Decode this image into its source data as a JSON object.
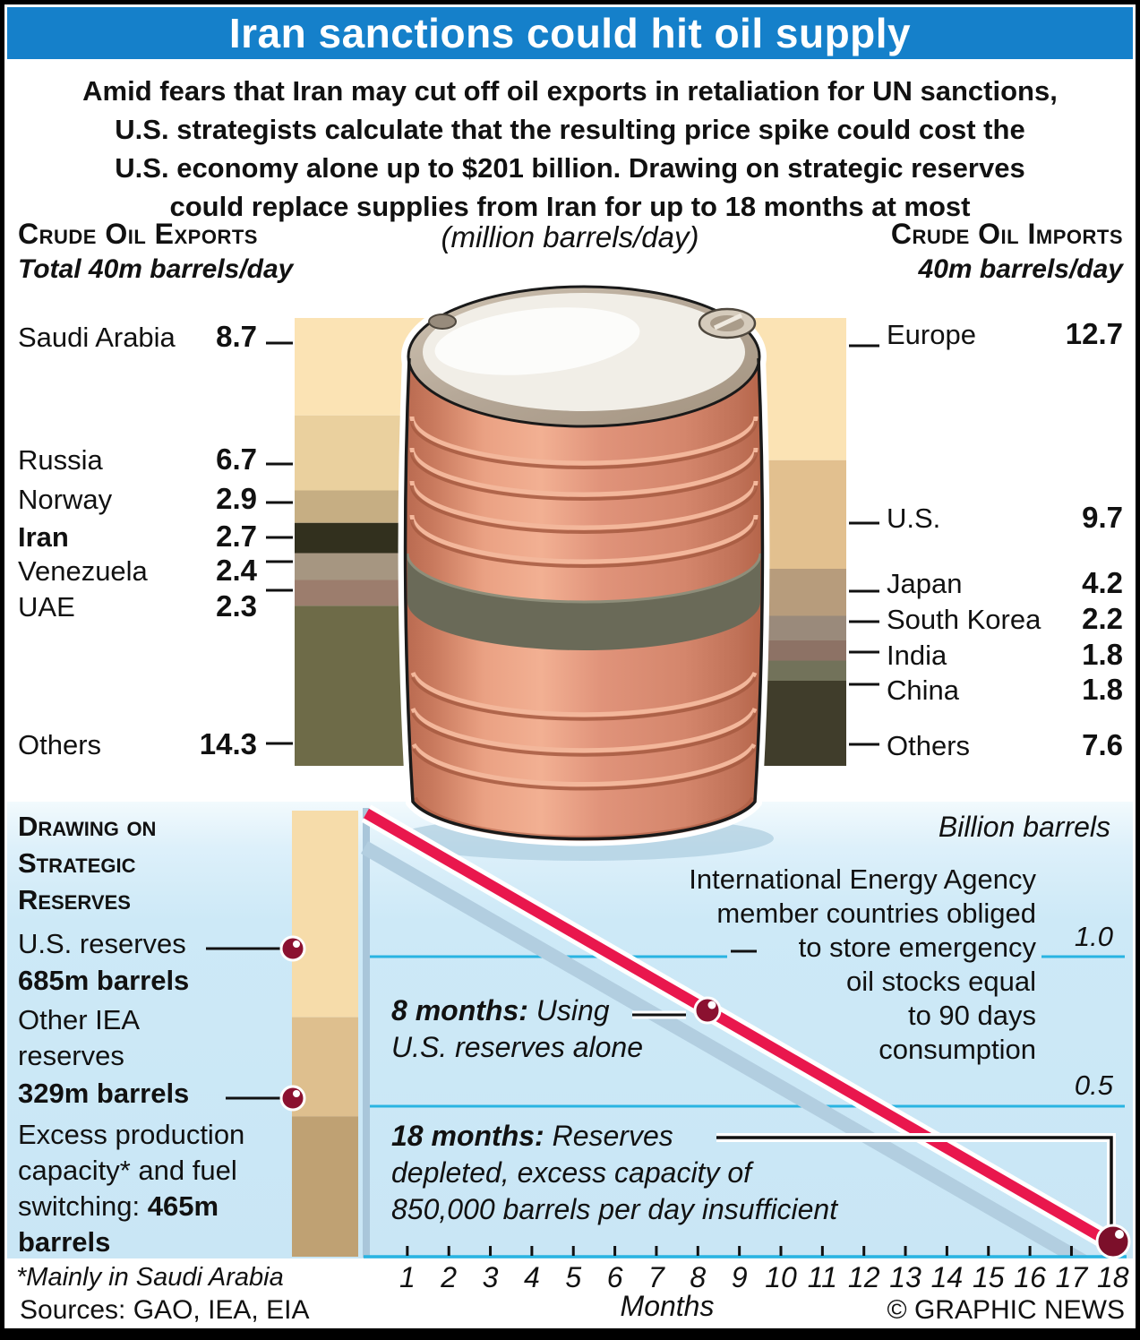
{
  "title": "Iran sanctions could hit oil supply",
  "intro_lines": [
    "Amid fears that Iran may cut off oil exports in retaliation for UN sanctions,",
    "U.S. strategists calculate that the resulting price spike could cost the",
    "U.S. economy alone up to $201 billion. Drawing on strategic reserves",
    "could replace supplies from Iran for up to 18 months at most"
  ],
  "unit_note": "(million barrels/day)",
  "exports": {
    "heading": "Crude Oil Exports",
    "subheading": "Total 40m barrels/day",
    "rows": [
      {
        "label": "Saudi Arabia",
        "value": "8.7"
      },
      {
        "label": "Russia",
        "value": "6.7"
      },
      {
        "label": "Norway",
        "value": "2.9"
      },
      {
        "label": "Iran",
        "value": "2.7",
        "bold": true
      },
      {
        "label": "Venezuela",
        "value": "2.4"
      },
      {
        "label": "UAE",
        "value": "2.3"
      },
      {
        "label": "Others",
        "value": "14.3"
      }
    ]
  },
  "imports": {
    "heading": "Crude Oil Imports",
    "subheading": "40m barrels/day",
    "rows": [
      {
        "label": "Europe",
        "value": "12.7"
      },
      {
        "label": "U.S.",
        "value": "9.7"
      },
      {
        "label": "Japan",
        "value": "4.2"
      },
      {
        "label": "South Korea",
        "value": "2.2"
      },
      {
        "label": "India",
        "value": "1.8"
      },
      {
        "label": "China",
        "value": "1.8"
      },
      {
        "label": "Others",
        "value": "7.6"
      }
    ]
  },
  "reserves": {
    "heading_lines": [
      "Drawing on",
      "Strategic",
      "Reserves"
    ],
    "text_lines": [
      [
        {
          "t": "U.S. reserves"
        }
      ],
      [
        {
          "t": "685m barrels",
          "s": "b"
        }
      ],
      [
        {
          "t": "Other IEA"
        }
      ],
      [
        {
          "t": "reserves"
        }
      ],
      [
        {
          "t": "329m barrels",
          "s": "b"
        }
      ],
      [
        {
          "t": "Excess production"
        }
      ],
      [
        {
          "t": "capacity* and fuel"
        }
      ],
      [
        {
          "t": "switching: "
        },
        {
          "t": "465m",
          "s": "b"
        }
      ],
      [
        {
          "t": "barrels",
          "s": "b"
        }
      ]
    ]
  },
  "iea_note_lines": [
    "International Energy Agency",
    "member countries obliged",
    "to store emergency",
    "oil stocks equal",
    "to 90 days",
    "consumption"
  ],
  "annotations": {
    "eight_months": [
      [
        {
          "t": "8 months:",
          "s": "bi"
        },
        {
          "t": " Using",
          "s": "i"
        }
      ],
      [
        {
          "t": "U.S. reserves alone",
          "s": "i"
        }
      ]
    ],
    "eighteen_months": [
      [
        {
          "t": "18 months:",
          "s": "bi"
        },
        {
          "t": " Reserves",
          "s": "i"
        }
      ],
      [
        {
          "t": "depleted, excess capacity of",
          "s": "i"
        }
      ],
      [
        {
          "t": "850,000 barrels per day insufficient",
          "s": "i"
        }
      ]
    ]
  },
  "axis": {
    "unit_label": "Billion barrels",
    "ytick_labels": [
      "1.0",
      "0.5"
    ],
    "month_labels": [
      "1",
      "2",
      "3",
      "4",
      "5",
      "6",
      "7",
      "8",
      "9",
      "10",
      "11",
      "12",
      "13",
      "14",
      "15",
      "16",
      "17",
      "18"
    ],
    "xlabel": "Months"
  },
  "footer": {
    "footnote": "*Mainly in Saudi Arabia",
    "sources": "Sources: GAO, IEA, EIA",
    "credit": "© GRAPHIC NEWS"
  },
  "colors": {
    "header_blue": "#1580ca",
    "panel_blue": "#cde9f7",
    "grid_cyan": "#29b4e2",
    "line_red": "#e9174d",
    "line_shadow": "#b2cee0",
    "axis_steel": "#a9c6da",
    "dot_maroon": "#8b1130",
    "export_segments": [
      "#fbe3b4",
      "#ead09e",
      "#c6ae83",
      "#32301e",
      "#a69681",
      "#9c7d6d",
      "#6e6b48"
    ],
    "import_segments": [
      "#fbe3b4",
      "#e2c08f",
      "#b79c7c",
      "#9a8a7b",
      "#8d7265",
      "#72725a",
      "#403d2b"
    ],
    "reserve_segments": [
      "#f6dcaa",
      "#debf8e",
      "#bfa173"
    ]
  },
  "chart_data": [
    {
      "type": "bar",
      "title": "(million barrels/day)",
      "series": [
        {
          "name": "Crude Oil Exports",
          "subtitle": "Total 40m barrels/day",
          "categories": [
            "Saudi Arabia",
            "Russia",
            "Norway",
            "Iran",
            "Venezuela",
            "UAE",
            "Others"
          ],
          "values": [
            8.7,
            6.7,
            2.9,
            2.7,
            2.4,
            2.3,
            14.3
          ]
        },
        {
          "name": "Crude Oil Imports",
          "subtitle": "40m barrels/day",
          "categories": [
            "Europe",
            "U.S.",
            "Japan",
            "South Korea",
            "India",
            "China",
            "Others"
          ],
          "values": [
            12.7,
            9.7,
            4.2,
            2.2,
            1.8,
            1.8,
            7.6
          ]
        }
      ]
    },
    {
      "type": "line",
      "title": "Drawing on Strategic Reserves",
      "xlabel": "Months",
      "ylabel": "Billion barrels",
      "xlim": [
        0,
        18
      ],
      "ylim": [
        0,
        1.479
      ],
      "yticks": [
        0.5,
        1.0
      ],
      "xticks": [
        1,
        2,
        3,
        4,
        5,
        6,
        7,
        8,
        9,
        10,
        11,
        12,
        13,
        14,
        15,
        16,
        17,
        18
      ],
      "x": [
        0,
        8,
        18
      ],
      "y": [
        1.479,
        0.822,
        0
      ],
      "points": [
        {
          "x": 8,
          "y": 0.822,
          "label": "8 months: Using U.S. reserves alone"
        },
        {
          "x": 18,
          "y": 0,
          "label": "18 months: Reserves depleted, excess capacity of 850,000 barrels per day insufficient"
        }
      ],
      "stacked_bar": {
        "categories": [
          "U.S. reserves",
          "Other IEA reserves",
          "Excess production capacity and fuel switching"
        ],
        "values_m_barrels": [
          685,
          329,
          465
        ]
      }
    }
  ]
}
